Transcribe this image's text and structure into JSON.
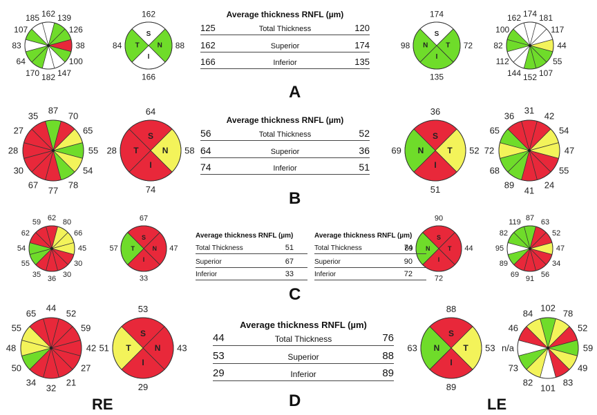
{
  "table_title": "Average thickness RNFL (µm)",
  "row_labels": [
    "Total Thickness",
    "Superior",
    "Inferior"
  ],
  "quadrant_letters": [
    "S",
    "N",
    "I",
    "T"
  ],
  "eye_labels": {
    "right": "RE",
    "left": "LE"
  },
  "colors": {
    "green": "#6fdc2a",
    "yellow": "#f3f35a",
    "red": "#e8283a",
    "white": "#ffffff",
    "line": "#333333"
  },
  "panels": [
    {
      "letter": "A",
      "table": {
        "re": [
          "125",
          "162",
          "166"
        ],
        "le": [
          "120",
          "174",
          "135"
        ]
      },
      "re_clock": {
        "values": [
          "162",
          "139",
          "126",
          "38",
          "100",
          "147",
          "182",
          "170",
          "64",
          "83",
          "107",
          "185"
        ],
        "colors": [
          "white",
          "green",
          "green",
          "red",
          "green",
          "white",
          "white",
          "green",
          "green",
          "white",
          "green",
          "white"
        ]
      },
      "re_quad": {
        "values": [
          "162",
          "88",
          "166",
          "84"
        ],
        "colors": [
          "white",
          "green",
          "white",
          "green"
        ]
      },
      "le_quad": {
        "values": [
          "174",
          "72",
          "135",
          "98"
        ],
        "colors": [
          "white",
          "green",
          "green",
          "green"
        ]
      },
      "le_clock": {
        "values": [
          "174",
          "181",
          "117",
          "44",
          "55",
          "107",
          "152",
          "144",
          "112",
          "82",
          "100",
          "162"
        ],
        "colors": [
          "white",
          "white",
          "white",
          "yellow",
          "green",
          "green",
          "green",
          "white",
          "white",
          "green",
          "green",
          "white"
        ]
      }
    },
    {
      "letter": "B",
      "table": {
        "re": [
          "56",
          "64",
          "74"
        ],
        "le": [
          "52",
          "36",
          "51"
        ]
      },
      "re_clock": {
        "values": [
          "87",
          "70",
          "65",
          "55",
          "54",
          "78",
          "77",
          "67",
          "30",
          "28",
          "27",
          "35"
        ],
        "colors": [
          "green",
          "red",
          "yellow",
          "green",
          "yellow",
          "green",
          "red",
          "red",
          "red",
          "red",
          "red",
          "red"
        ]
      },
      "re_quad": {
        "values": [
          "64",
          "58",
          "74",
          "28"
        ],
        "colors": [
          "red",
          "yellow",
          "red",
          "red"
        ]
      },
      "le_quad": {
        "values": [
          "36",
          "52",
          "51",
          "69"
        ],
        "colors": [
          "red",
          "yellow",
          "red",
          "green"
        ]
      },
      "le_clock": {
        "values": [
          "31",
          "42",
          "54",
          "47",
          "55",
          "24",
          "41",
          "89",
          "68",
          "72",
          "65",
          "36"
        ],
        "colors": [
          "red",
          "red",
          "yellow",
          "yellow",
          "red",
          "red",
          "red",
          "green",
          "green",
          "yellow",
          "green",
          "red"
        ]
      }
    },
    {
      "letter": "C",
      "table": {
        "re": [
          "51",
          "67",
          "33"
        ],
        "le": [
          "74",
          "90",
          "72"
        ]
      },
      "re_clock": {
        "values": [
          "62",
          "80",
          "66",
          "45",
          "30",
          "30",
          "36",
          "35",
          "55",
          "54",
          "62",
          "59"
        ],
        "colors": [
          "red",
          "yellow",
          "yellow",
          "yellow",
          "red",
          "red",
          "red",
          "red",
          "green",
          "green",
          "red",
          "red"
        ]
      },
      "re_quad": {
        "values": [
          "67",
          "47",
          "33",
          "57"
        ],
        "colors": [
          "red",
          "red",
          "red",
          "green"
        ]
      },
      "le_quad": {
        "values": [
          "90",
          "44",
          "72",
          "89"
        ],
        "colors": [
          "red",
          "red",
          "red",
          "green"
        ]
      },
      "le_clock": {
        "values": [
          "87",
          "63",
          "52",
          "47",
          "34",
          "56",
          "91",
          "69",
          "89",
          "95",
          "82",
          "119"
        ],
        "colors": [
          "green",
          "red",
          "red",
          "yellow",
          "red",
          "red",
          "red",
          "red",
          "green",
          "white",
          "green",
          "green"
        ]
      }
    },
    {
      "letter": "D",
      "table": {
        "re": [
          "44",
          "53",
          "29"
        ],
        "le": [
          "76",
          "88",
          "89"
        ]
      },
      "re_clock": {
        "values": [
          "44",
          "52",
          "59",
          "42",
          "27",
          "21",
          "32",
          "34",
          "50",
          "48",
          "55",
          "65"
        ],
        "colors": [
          "red",
          "red",
          "red",
          "red",
          "red",
          "red",
          "red",
          "red",
          "green",
          "yellow",
          "yellow",
          "red"
        ]
      },
      "re_quad": {
        "values": [
          "53",
          "43",
          "29",
          "51"
        ],
        "colors": [
          "red",
          "red",
          "red",
          "yellow"
        ]
      },
      "le_quad": {
        "values": [
          "88",
          "53",
          "89",
          "63"
        ],
        "colors": [
          "red",
          "yellow",
          "red",
          "green"
        ]
      },
      "le_clock": {
        "values": [
          "102",
          "78",
          "52",
          "59",
          "49",
          "83",
          "101",
          "82",
          "73",
          "n/a",
          "46",
          "84"
        ],
        "colors": [
          "green",
          "yellow",
          "red",
          "green",
          "yellow",
          "red",
          "white",
          "yellow",
          "green",
          "white",
          "red",
          "yellow"
        ]
      }
    }
  ]
}
